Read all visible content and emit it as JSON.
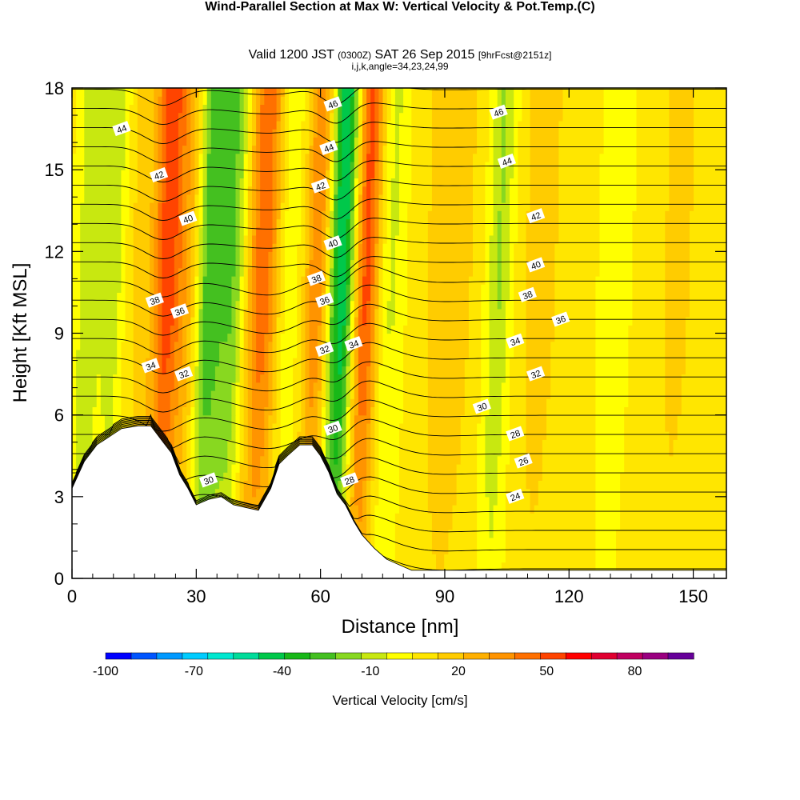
{
  "title": {
    "main": "Wind-Parallel Section at Max W: Vertical Velocity & Pot.Temp.",
    "mark": "(C)",
    "valid_prefix": "Valid 1200 JST",
    "valid_zulu": "(0300Z)",
    "valid_date": "SAT 26 Sep 2015",
    "fcst": "[9hrFcst@2151z]",
    "indices": "i,j,k,angle=34,23,24,99"
  },
  "chart_data": {
    "type": "heatmap",
    "xlabel": "Distance [nm]",
    "ylabel": "Height [Kft MSL]",
    "xlim": [
      0,
      158
    ],
    "ylim": [
      0,
      18
    ],
    "x_ticks": [
      "0",
      "30",
      "60",
      "90",
      "120",
      "150"
    ],
    "y_ticks": [
      "0",
      "3",
      "6",
      "9",
      "12",
      "15",
      "18"
    ],
    "colorbar": {
      "label": "Vertical Velocity [cm/s]",
      "tick_labels": [
        "-100",
        "-70",
        "-40",
        "-10",
        "20",
        "50",
        "80"
      ],
      "min": -100,
      "max": 100,
      "colors": [
        "#0000ff",
        "#0055ff",
        "#0099ff",
        "#00ccff",
        "#00e8d0",
        "#00dc9a",
        "#00c84a",
        "#18b818",
        "#44c020",
        "#88d820",
        "#c8e810",
        "#ffff00",
        "#ffe600",
        "#ffcc00",
        "#ffb000",
        "#ff9400",
        "#ff7000",
        "#ff4400",
        "#ff0000",
        "#e00030",
        "#c00060",
        "#9a0080",
        "#660099"
      ]
    },
    "terrain_kft": [
      [
        0,
        3.3
      ],
      [
        3,
        4.3
      ],
      [
        6,
        4.9
      ],
      [
        9,
        5.2
      ],
      [
        12,
        5.5
      ],
      [
        16,
        5.6
      ],
      [
        19,
        5.6
      ],
      [
        22,
        5.0
      ],
      [
        24,
        4.6
      ],
      [
        26,
        3.8
      ],
      [
        28,
        3.3
      ],
      [
        30,
        2.7
      ],
      [
        33,
        2.9
      ],
      [
        36,
        3.0
      ],
      [
        39,
        2.7
      ],
      [
        42,
        2.6
      ],
      [
        45,
        2.5
      ],
      [
        48,
        3.3
      ],
      [
        50,
        4.2
      ],
      [
        52,
        4.5
      ],
      [
        55,
        4.9
      ],
      [
        58,
        4.9
      ],
      [
        60,
        4.5
      ],
      [
        62,
        3.9
      ],
      [
        64,
        3.1
      ],
      [
        66,
        2.7
      ],
      [
        68,
        2.1
      ],
      [
        70,
        1.6
      ],
      [
        73,
        1.1
      ],
      [
        76,
        0.7
      ],
      [
        79,
        0.5
      ],
      [
        82,
        0.3
      ],
      [
        85,
        0.3
      ],
      [
        158,
        0.3
      ]
    ],
    "bands": [
      {
        "x": 3,
        "w": -18,
        "width": 3
      },
      {
        "x": 9,
        "w": -15,
        "width": 3
      },
      {
        "x": 14,
        "w": 8,
        "width": 3
      },
      {
        "x": 22,
        "w": 48,
        "width": 4
      },
      {
        "x": 28,
        "w": 20,
        "width": 3
      },
      {
        "x": 32,
        "w": -38,
        "width": 4
      },
      {
        "x": 38,
        "w": -25,
        "width": 3
      },
      {
        "x": 45,
        "w": 40,
        "width": 4
      },
      {
        "x": 51,
        "w": -10,
        "width": 3
      },
      {
        "x": 58,
        "w": 32,
        "width": 3
      },
      {
        "x": 64,
        "w": -55,
        "width": 3
      },
      {
        "x": 70,
        "w": 45,
        "width": 3
      },
      {
        "x": 76,
        "w": -12,
        "width": 3
      },
      {
        "x": 90,
        "w": 15,
        "width": 6
      },
      {
        "x": 102,
        "w": -20,
        "width": 3
      },
      {
        "x": 112,
        "w": 12,
        "width": 5
      },
      {
        "x": 130,
        "w": -5,
        "width": 4
      },
      {
        "x": 145,
        "w": 10,
        "width": 5
      }
    ],
    "isotherm_labels": [
      {
        "text": "46",
        "x": 63,
        "y": 17.4
      },
      {
        "text": "46",
        "x": 103,
        "y": 17.1
      },
      {
        "text": "44",
        "x": 12,
        "y": 16.5
      },
      {
        "text": "44",
        "x": 62,
        "y": 15.8
      },
      {
        "text": "44",
        "x": 105,
        "y": 15.3
      },
      {
        "text": "42",
        "x": 21,
        "y": 14.8
      },
      {
        "text": "42",
        "x": 60,
        "y": 14.4
      },
      {
        "text": "42",
        "x": 112,
        "y": 13.3
      },
      {
        "text": "40",
        "x": 28,
        "y": 13.2
      },
      {
        "text": "40",
        "x": 63,
        "y": 12.3
      },
      {
        "text": "40",
        "x": 112,
        "y": 11.5
      },
      {
        "text": "38",
        "x": 20,
        "y": 10.2
      },
      {
        "text": "38",
        "x": 59,
        "y": 11.0
      },
      {
        "text": "38",
        "x": 110,
        "y": 10.4
      },
      {
        "text": "36",
        "x": 26,
        "y": 9.8
      },
      {
        "text": "36",
        "x": 61,
        "y": 10.2
      },
      {
        "text": "36",
        "x": 118,
        "y": 9.5
      },
      {
        "text": "34",
        "x": 19,
        "y": 7.8
      },
      {
        "text": "34",
        "x": 68,
        "y": 8.6
      },
      {
        "text": "34",
        "x": 107,
        "y": 8.7
      },
      {
        "text": "32",
        "x": 27,
        "y": 7.5
      },
      {
        "text": "32",
        "x": 61,
        "y": 8.4
      },
      {
        "text": "32",
        "x": 112,
        "y": 7.5
      },
      {
        "text": "30",
        "x": 99,
        "y": 6.3
      },
      {
        "text": "30",
        "x": 63,
        "y": 5.5
      },
      {
        "text": "30",
        "x": 33,
        "y": 3.6
      },
      {
        "text": "28",
        "x": 107,
        "y": 5.3
      },
      {
        "text": "28",
        "x": 67,
        "y": 3.6
      },
      {
        "text": "26",
        "x": 109,
        "y": 4.3
      },
      {
        "text": "24",
        "x": 107,
        "y": 3.0
      }
    ]
  }
}
